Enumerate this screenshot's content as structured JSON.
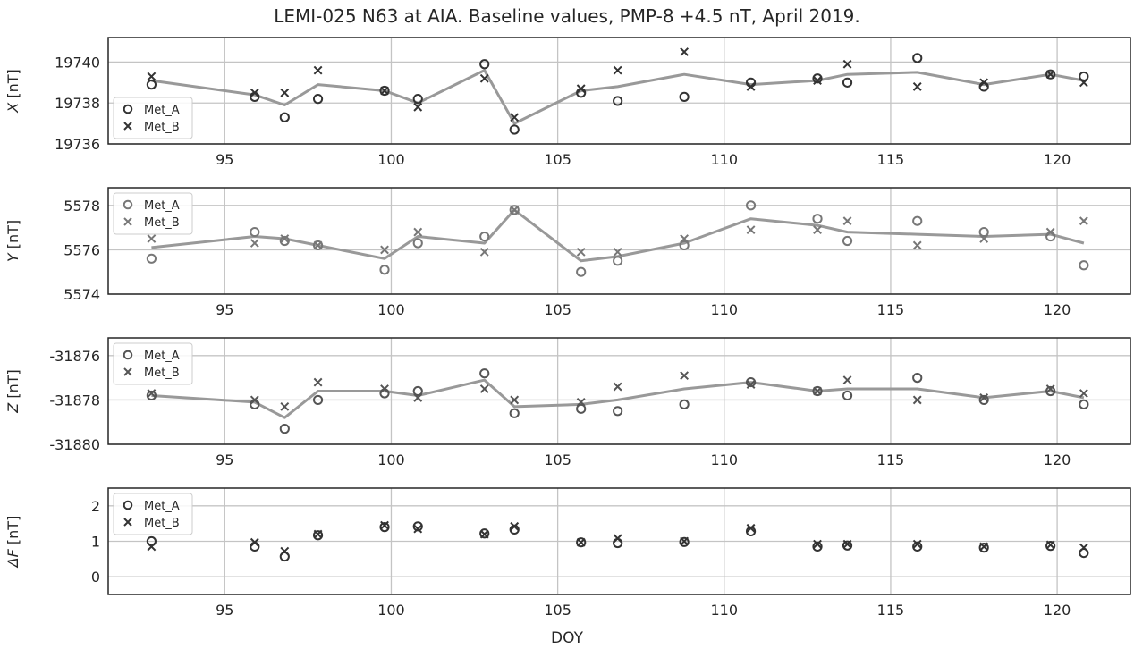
{
  "chart_data": {
    "title": "LEMI-025 N63 at AIA. Baseline values, PMP-8 +4.5 nT, April 2019.",
    "xlabel": "DOY",
    "xlim": [
      91.5,
      122.2
    ],
    "xticks": [
      95,
      100,
      105,
      110,
      115,
      120
    ],
    "grid": true,
    "panels": [
      {
        "type": "scatter",
        "ylabel": "X [nT]",
        "ylabel_italic": "X",
        "ylabel_unit": "[nT]",
        "ylim": [
          19736,
          19741.2
        ],
        "yticks": [
          19736,
          19738,
          19740
        ],
        "legend_position": "lower-left",
        "marker_color": "#333333",
        "x": [
          92.8,
          95.9,
          96.8,
          97.8,
          99.8,
          100.8,
          102.8,
          103.7,
          105.7,
          106.8,
          108.8,
          110.8,
          112.8,
          113.7,
          115.8,
          117.8,
          119.8,
          120.8
        ],
        "series": [
          {
            "name": "Met_A",
            "marker": "o",
            "values": [
              19738.9,
              19738.3,
              19737.3,
              19738.2,
              19738.6,
              19738.2,
              19739.9,
              19736.7,
              19738.5,
              19738.1,
              19738.3,
              19739.0,
              19739.2,
              19739.0,
              19740.2,
              19738.8,
              19739.4,
              19739.3
            ]
          },
          {
            "name": "Met_B",
            "marker": "x",
            "values": [
              19739.3,
              19738.5,
              19738.5,
              19739.6,
              19738.6,
              19737.8,
              19739.2,
              19737.3,
              19738.7,
              19739.6,
              19740.5,
              19738.8,
              19739.1,
              19739.9,
              19738.8,
              19739.0,
              19739.4,
              19739.0
            ]
          },
          {
            "name": "",
            "type": "line",
            "color": "#999999",
            "values": [
              19739.1,
              19738.4,
              19737.9,
              19738.9,
              19738.6,
              19738.0,
              19739.6,
              19737.0,
              19738.6,
              19738.8,
              19739.4,
              19738.9,
              19739.1,
              19739.4,
              19739.5,
              19738.9,
              19739.4,
              19739.1
            ]
          }
        ]
      },
      {
        "type": "scatter",
        "ylabel": "Y [nT]",
        "ylabel_italic": "Y",
        "ylabel_unit": "[nT]",
        "ylim": [
          5574,
          5578.8
        ],
        "yticks": [
          5574,
          5576,
          5578
        ],
        "legend_position": "upper-left",
        "marker_color": "#777777",
        "x": [
          92.8,
          95.9,
          96.8,
          97.8,
          99.8,
          100.8,
          102.8,
          103.7,
          105.7,
          106.8,
          108.8,
          110.8,
          112.8,
          113.7,
          115.8,
          117.8,
          119.8,
          120.8
        ],
        "series": [
          {
            "name": "Met_A",
            "marker": "o",
            "values": [
              5575.6,
              5576.8,
              5576.4,
              5576.2,
              5575.1,
              5576.3,
              5576.6,
              5577.8,
              5575.0,
              5575.5,
              5576.2,
              5578.0,
              5577.4,
              5576.4,
              5577.3,
              5576.8,
              5576.6,
              5575.3
            ]
          },
          {
            "name": "Met_B",
            "marker": "x",
            "values": [
              5576.5,
              5576.3,
              5576.5,
              5576.2,
              5576.0,
              5576.8,
              5575.9,
              5577.8,
              5575.9,
              5575.9,
              5576.5,
              5576.9,
              5576.9,
              5577.3,
              5576.2,
              5576.5,
              5576.8,
              5577.3
            ]
          },
          {
            "name": "",
            "type": "line",
            "color": "#999999",
            "values": [
              5576.1,
              5576.6,
              5576.5,
              5576.2,
              5575.6,
              5576.6,
              5576.3,
              5577.8,
              5575.5,
              5575.7,
              5576.3,
              5577.4,
              5577.1,
              5576.8,
              5576.7,
              5576.6,
              5576.7,
              5576.3
            ]
          }
        ]
      },
      {
        "type": "scatter",
        "ylabel": "Z [nT]",
        "ylabel_italic": "Z",
        "ylabel_unit": "[nT]",
        "ylim": [
          -31880,
          -31875.2
        ],
        "yticks": [
          -31880,
          -31878,
          -31876
        ],
        "legend_position": "upper-left",
        "marker_color": "#555555",
        "x": [
          92.8,
          95.9,
          96.8,
          97.8,
          99.8,
          100.8,
          102.8,
          103.7,
          105.7,
          106.8,
          108.8,
          110.8,
          112.8,
          113.7,
          115.8,
          117.8,
          119.8,
          120.8
        ],
        "series": [
          {
            "name": "Met_A",
            "marker": "o",
            "values": [
              -31877.8,
              -31878.2,
              -31879.3,
              -31878.0,
              -31877.7,
              -31877.6,
              -31876.8,
              -31878.6,
              -31878.4,
              -31878.5,
              -31878.2,
              -31877.2,
              -31877.6,
              -31877.8,
              -31877.0,
              -31878.0,
              -31877.6,
              -31878.2
            ]
          },
          {
            "name": "Met_B",
            "marker": "x",
            "values": [
              -31877.7,
              -31878.0,
              -31878.3,
              -31877.2,
              -31877.5,
              -31877.9,
              -31877.5,
              -31878.0,
              -31878.1,
              -31877.4,
              -31876.9,
              -31877.3,
              -31877.6,
              -31877.1,
              -31878.0,
              -31877.9,
              -31877.5,
              -31877.7
            ]
          },
          {
            "name": "",
            "type": "line",
            "color": "#999999",
            "values": [
              -31877.8,
              -31878.1,
              -31878.8,
              -31877.6,
              -31877.6,
              -31877.8,
              -31877.1,
              -31878.3,
              -31878.2,
              -31878.0,
              -31877.5,
              -31877.2,
              -31877.6,
              -31877.5,
              -31877.5,
              -31877.9,
              -31877.6,
              -31877.9
            ]
          }
        ]
      },
      {
        "type": "scatter",
        "ylabel": "ΔF [nT]",
        "ylabel_italic": "ΔF",
        "ylabel_unit": "[nT]",
        "ylim": [
          -0.5,
          2.5
        ],
        "yticks": [
          0,
          1,
          2
        ],
        "legend_position": "upper-left",
        "marker_color": "#333333",
        "x": [
          92.8,
          95.9,
          96.8,
          97.8,
          99.8,
          100.8,
          102.8,
          103.7,
          105.7,
          106.8,
          108.8,
          110.8,
          112.8,
          113.7,
          115.8,
          117.8,
          119.8,
          120.8
        ],
        "series": [
          {
            "name": "Met_A",
            "marker": "o",
            "values": [
              1.0,
              0.85,
              0.57,
              1.17,
              1.4,
              1.42,
              1.22,
              1.33,
              0.97,
              0.95,
              0.98,
              1.28,
              0.85,
              0.88,
              0.85,
              0.82,
              0.87,
              0.67
            ]
          },
          {
            "name": "Met_B",
            "marker": "x",
            "values": [
              0.85,
              0.97,
              0.72,
              1.2,
              1.45,
              1.35,
              1.2,
              1.42,
              0.97,
              1.08,
              1.0,
              1.37,
              0.92,
              0.92,
              0.92,
              0.85,
              0.9,
              0.82
            ]
          }
        ]
      }
    ]
  }
}
